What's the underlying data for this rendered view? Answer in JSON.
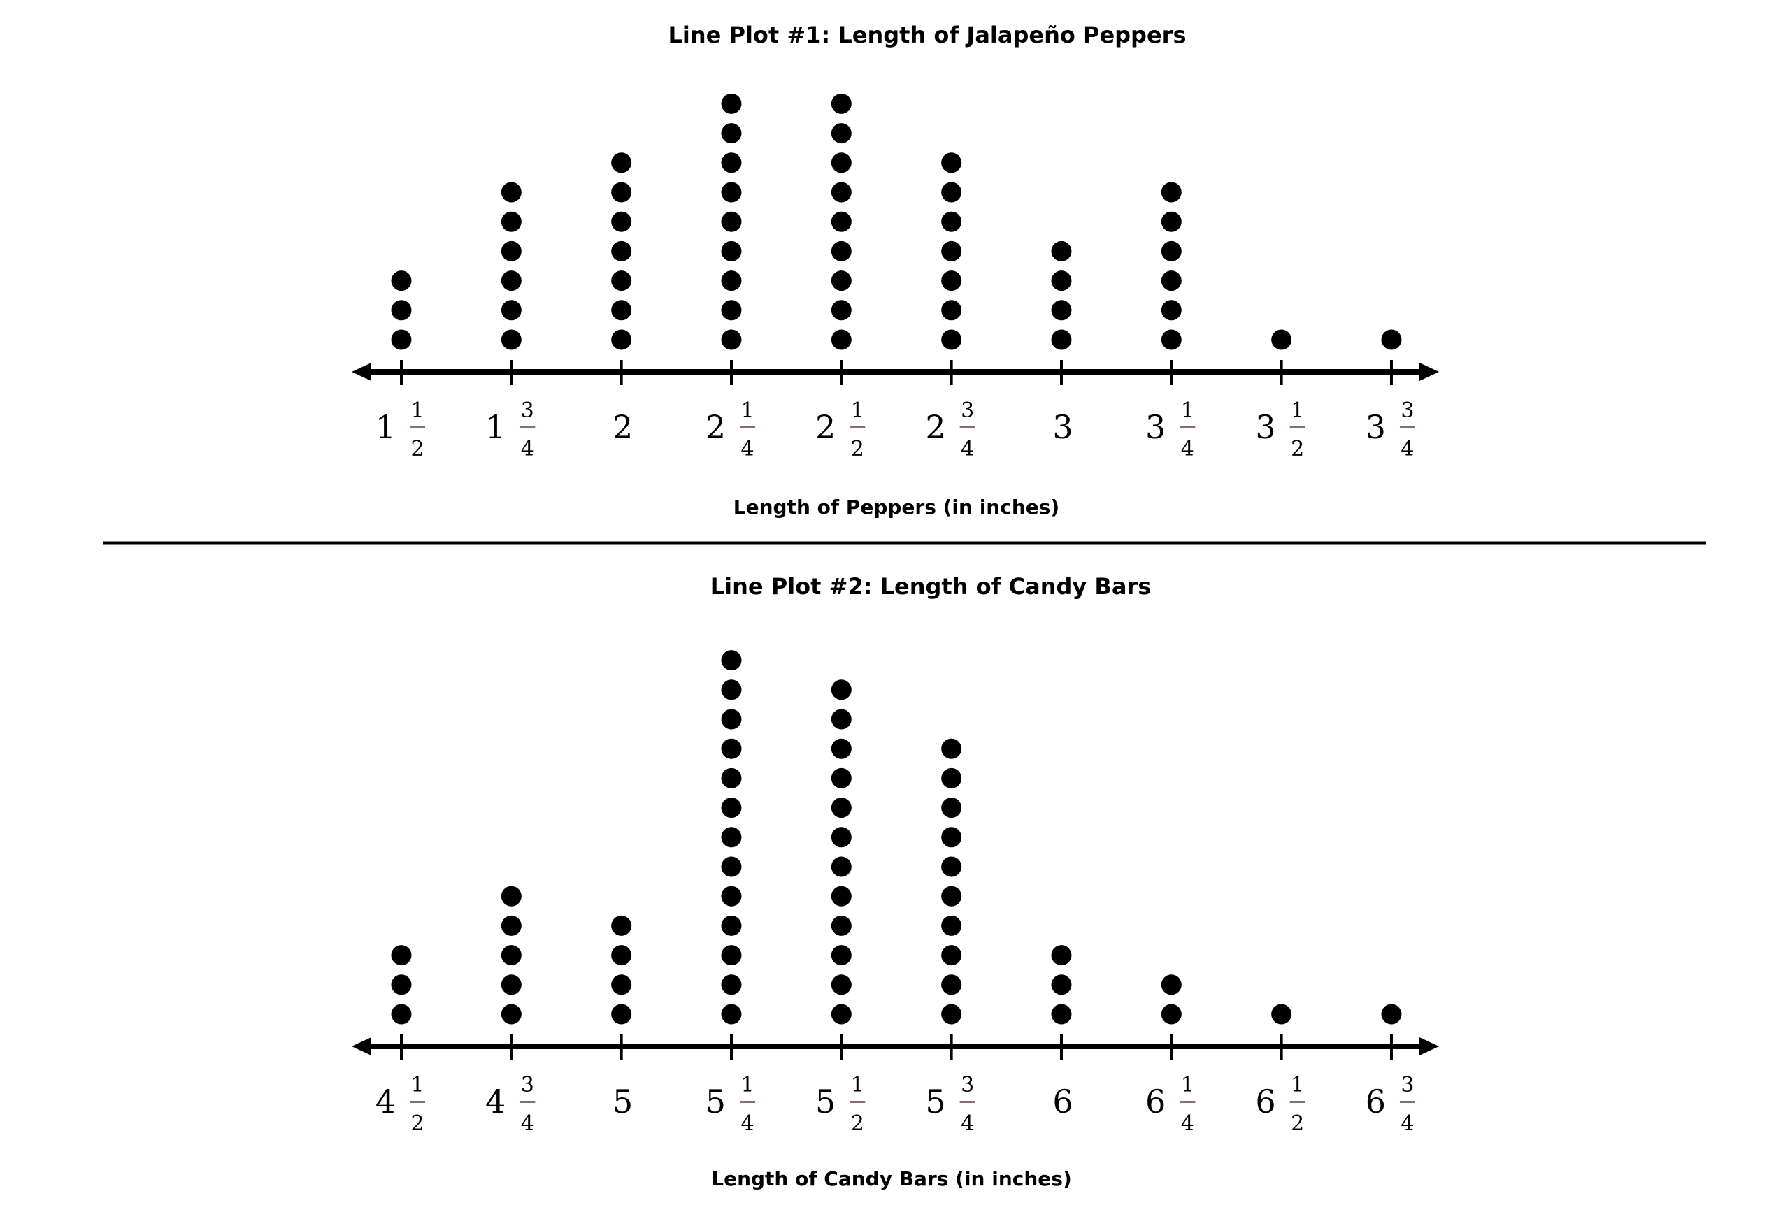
{
  "colors": {
    "ink": "#000000",
    "fraction_bar": "#8a6e6e",
    "background": "#ffffff"
  },
  "plots": [
    {
      "title": "Line Plot #1: Length of Jalapeño Peppers",
      "xlabel": "Length of Peppers (in inches)",
      "ticks": [
        {
          "whole": "1",
          "num": "1",
          "den": "2"
        },
        {
          "whole": "1",
          "num": "3",
          "den": "4"
        },
        {
          "whole": "2",
          "num": "",
          "den": ""
        },
        {
          "whole": "2",
          "num": "1",
          "den": "4"
        },
        {
          "whole": "2",
          "num": "1",
          "den": "2"
        },
        {
          "whole": "2",
          "num": "3",
          "den": "4"
        },
        {
          "whole": "3",
          "num": "",
          "den": ""
        },
        {
          "whole": "3",
          "num": "1",
          "den": "4"
        },
        {
          "whole": "3",
          "num": "1",
          "den": "2"
        },
        {
          "whole": "3",
          "num": "3",
          "den": "4"
        }
      ],
      "counts": [
        3,
        6,
        7,
        9,
        9,
        7,
        4,
        6,
        1,
        1
      ]
    },
    {
      "title": "Line Plot #2: Length of Candy Bars",
      "xlabel": "Length of Candy Bars (in inches)",
      "ticks": [
        {
          "whole": "4",
          "num": "1",
          "den": "2"
        },
        {
          "whole": "4",
          "num": "3",
          "den": "4"
        },
        {
          "whole": "5",
          "num": "",
          "den": ""
        },
        {
          "whole": "5",
          "num": "1",
          "den": "4"
        },
        {
          "whole": "5",
          "num": "1",
          "den": "2"
        },
        {
          "whole": "5",
          "num": "3",
          "den": "4"
        },
        {
          "whole": "6",
          "num": "",
          "den": ""
        },
        {
          "whole": "6",
          "num": "1",
          "den": "4"
        },
        {
          "whole": "6",
          "num": "1",
          "den": "2"
        },
        {
          "whole": "6",
          "num": "3",
          "den": "4"
        }
      ],
      "counts": [
        3,
        5,
        4,
        13,
        12,
        10,
        3,
        2,
        1,
        1
      ]
    }
  ],
  "chart_data": [
    {
      "type": "scatter",
      "subtype": "dot-plot",
      "title": "Line Plot #1: Length of Jalapeño Peppers",
      "xlabel": "Length of Peppers (in inches)",
      "ylabel": "",
      "categories": [
        "1 1/2",
        "1 3/4",
        "2",
        "2 1/4",
        "2 1/2",
        "2 3/4",
        "3",
        "3 1/4",
        "3 1/2",
        "3 3/4"
      ],
      "x": [
        1.5,
        1.75,
        2.0,
        2.25,
        2.5,
        2.75,
        3.0,
        3.25,
        3.5,
        3.75
      ],
      "values": [
        3,
        6,
        7,
        9,
        9,
        7,
        4,
        6,
        1,
        1
      ],
      "total": 53,
      "grid": false,
      "legend": null
    },
    {
      "type": "scatter",
      "subtype": "dot-plot",
      "title": "Line Plot #2: Length of Candy Bars",
      "xlabel": "Length of Candy Bars (in inches)",
      "ylabel": "",
      "categories": [
        "4 1/2",
        "4 3/4",
        "5",
        "5 1/4",
        "5 1/2",
        "5 3/4",
        "6",
        "6 1/4",
        "6 1/2",
        "6 3/4"
      ],
      "x": [
        4.5,
        4.75,
        5.0,
        5.25,
        5.5,
        5.75,
        6.0,
        6.25,
        6.5,
        6.75
      ],
      "values": [
        3,
        5,
        4,
        13,
        12,
        10,
        3,
        2,
        1,
        1
      ],
      "total": 54,
      "grid": false,
      "legend": null
    }
  ]
}
